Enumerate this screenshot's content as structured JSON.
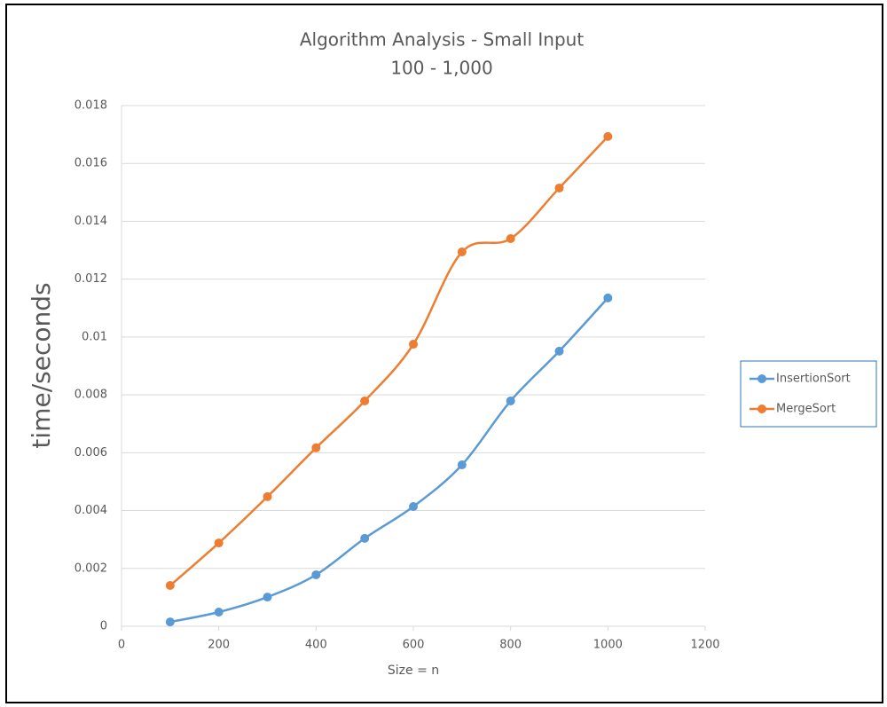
{
  "chart_data": {
    "type": "line",
    "smooth": true,
    "title": "Algorithm Analysis - Small Input",
    "subtitle": "100 - 1,000",
    "x_label": "Size = n",
    "y_label": "time/seconds",
    "x": [
      100,
      200,
      300,
      400,
      500,
      600,
      700,
      800,
      900,
      1000
    ],
    "series": [
      {
        "name": "InsertionSort",
        "color": "#5b9bd5",
        "values": [
          0.00015,
          0.00049,
          0.00101,
          0.00178,
          0.00304,
          0.00414,
          0.00558,
          0.00779,
          0.00951,
          0.01135
        ]
      },
      {
        "name": "MergeSort",
        "color": "#ed7d31",
        "values": [
          0.00141,
          0.00288,
          0.00448,
          0.00617,
          0.00779,
          0.00975,
          0.01294,
          0.0134,
          0.01515,
          0.01693
        ]
      }
    ],
    "xlim": [
      0,
      1200
    ],
    "xticks": [
      0,
      200,
      400,
      600,
      800,
      1000,
      1200
    ],
    "ylim": [
      0,
      0.018
    ],
    "yticks": [
      0,
      0.002,
      0.004,
      0.006,
      0.008,
      0.01,
      0.012,
      0.014,
      0.016,
      0.018
    ],
    "grid": true,
    "legend": "right"
  }
}
